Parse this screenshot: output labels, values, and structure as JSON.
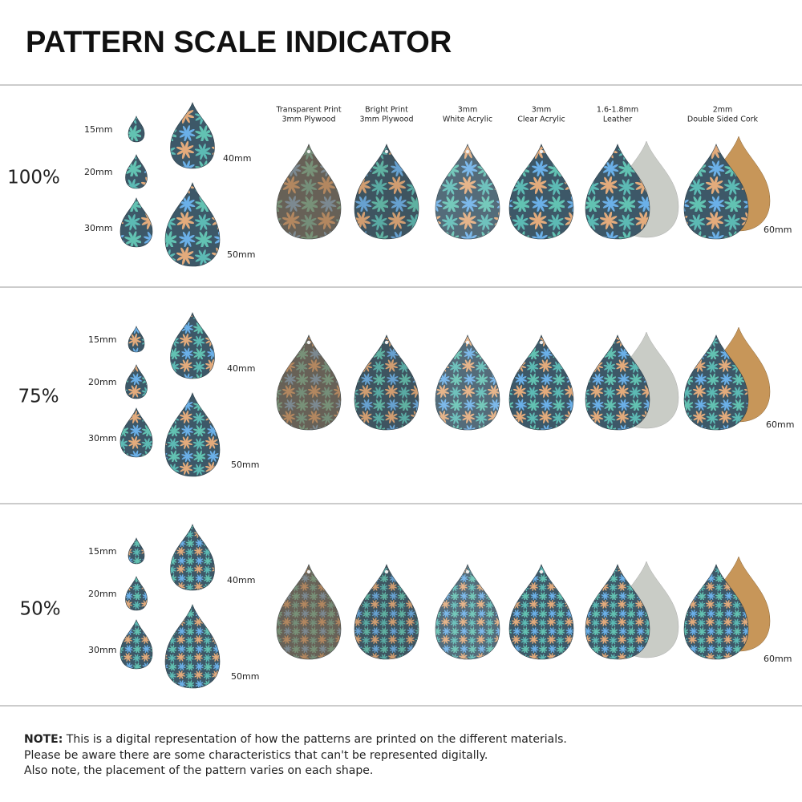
{
  "header": {
    "title": "PATTERN SCALE INDICATOR"
  },
  "sizes": [
    "15mm",
    "20mm",
    "30mm",
    "40mm",
    "50mm"
  ],
  "materials": [
    {
      "line1": "Transparent Print",
      "line2": "3mm Plywood"
    },
    {
      "line1": "Bright Print",
      "line2": "3mm Plywood"
    },
    {
      "line1": "3mm",
      "line2": "White Acrylic"
    },
    {
      "line1": "3mm",
      "line2": "Clear Acrylic"
    },
    {
      "line1": "1.6-1.8mm",
      "line2": "Leather"
    },
    {
      "line1": "2mm",
      "line2": "Double Sided Cork"
    }
  ],
  "material_size": "60mm",
  "sections": [
    {
      "scale": "100%"
    },
    {
      "scale": "75%"
    },
    {
      "scale": "50%"
    }
  ],
  "note": {
    "label": "NOTE:",
    "lines": [
      "This is a digital representation of how the patterns are printed on the different materials.",
      "Please be aware there are some characteristics that can't be represented digitally.",
      "Also note, the placement of the pattern varies on each shape."
    ]
  }
}
